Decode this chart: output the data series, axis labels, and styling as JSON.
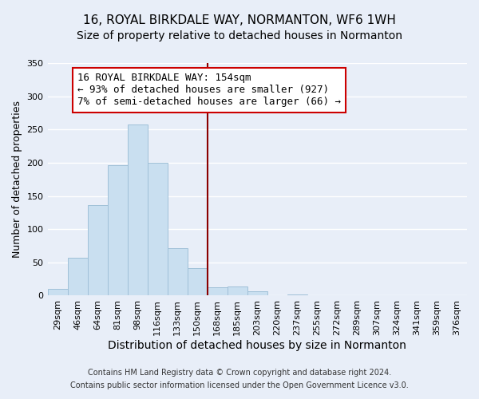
{
  "title": "16, ROYAL BIRKDALE WAY, NORMANTON, WF6 1WH",
  "subtitle": "Size of property relative to detached houses in Normanton",
  "xlabel": "Distribution of detached houses by size in Normanton",
  "ylabel": "Number of detached properties",
  "bar_color": "#c9dff0",
  "bar_edge_color": "#a0c0d8",
  "background_color": "#e8eef8",
  "grid_color": "white",
  "bin_labels": [
    "29sqm",
    "46sqm",
    "64sqm",
    "81sqm",
    "98sqm",
    "116sqm",
    "133sqm",
    "150sqm",
    "168sqm",
    "185sqm",
    "203sqm",
    "220sqm",
    "237sqm",
    "255sqm",
    "272sqm",
    "289sqm",
    "307sqm",
    "324sqm",
    "341sqm",
    "359sqm",
    "376sqm"
  ],
  "bar_heights": [
    10,
    57,
    136,
    196,
    258,
    200,
    71,
    41,
    12,
    14,
    6,
    0,
    2,
    0,
    0,
    0,
    0,
    0,
    0,
    1,
    0
  ],
  "ylim": [
    0,
    350
  ],
  "yticks": [
    0,
    50,
    100,
    150,
    200,
    250,
    300,
    350
  ],
  "property_line_x": 7.5,
  "property_line_color": "#8b0000",
  "annotation_line1": "16 ROYAL BIRKDALE WAY: 154sqm",
  "annotation_line2": "← 93% of detached houses are smaller (927)",
  "annotation_line3": "7% of semi-detached houses are larger (66) →",
  "footer_line1": "Contains HM Land Registry data © Crown copyright and database right 2024.",
  "footer_line2": "Contains public sector information licensed under the Open Government Licence v3.0.",
  "title_fontsize": 11,
  "subtitle_fontsize": 10,
  "xlabel_fontsize": 10,
  "ylabel_fontsize": 9,
  "tick_fontsize": 8,
  "annotation_fontsize": 9,
  "footer_fontsize": 7
}
